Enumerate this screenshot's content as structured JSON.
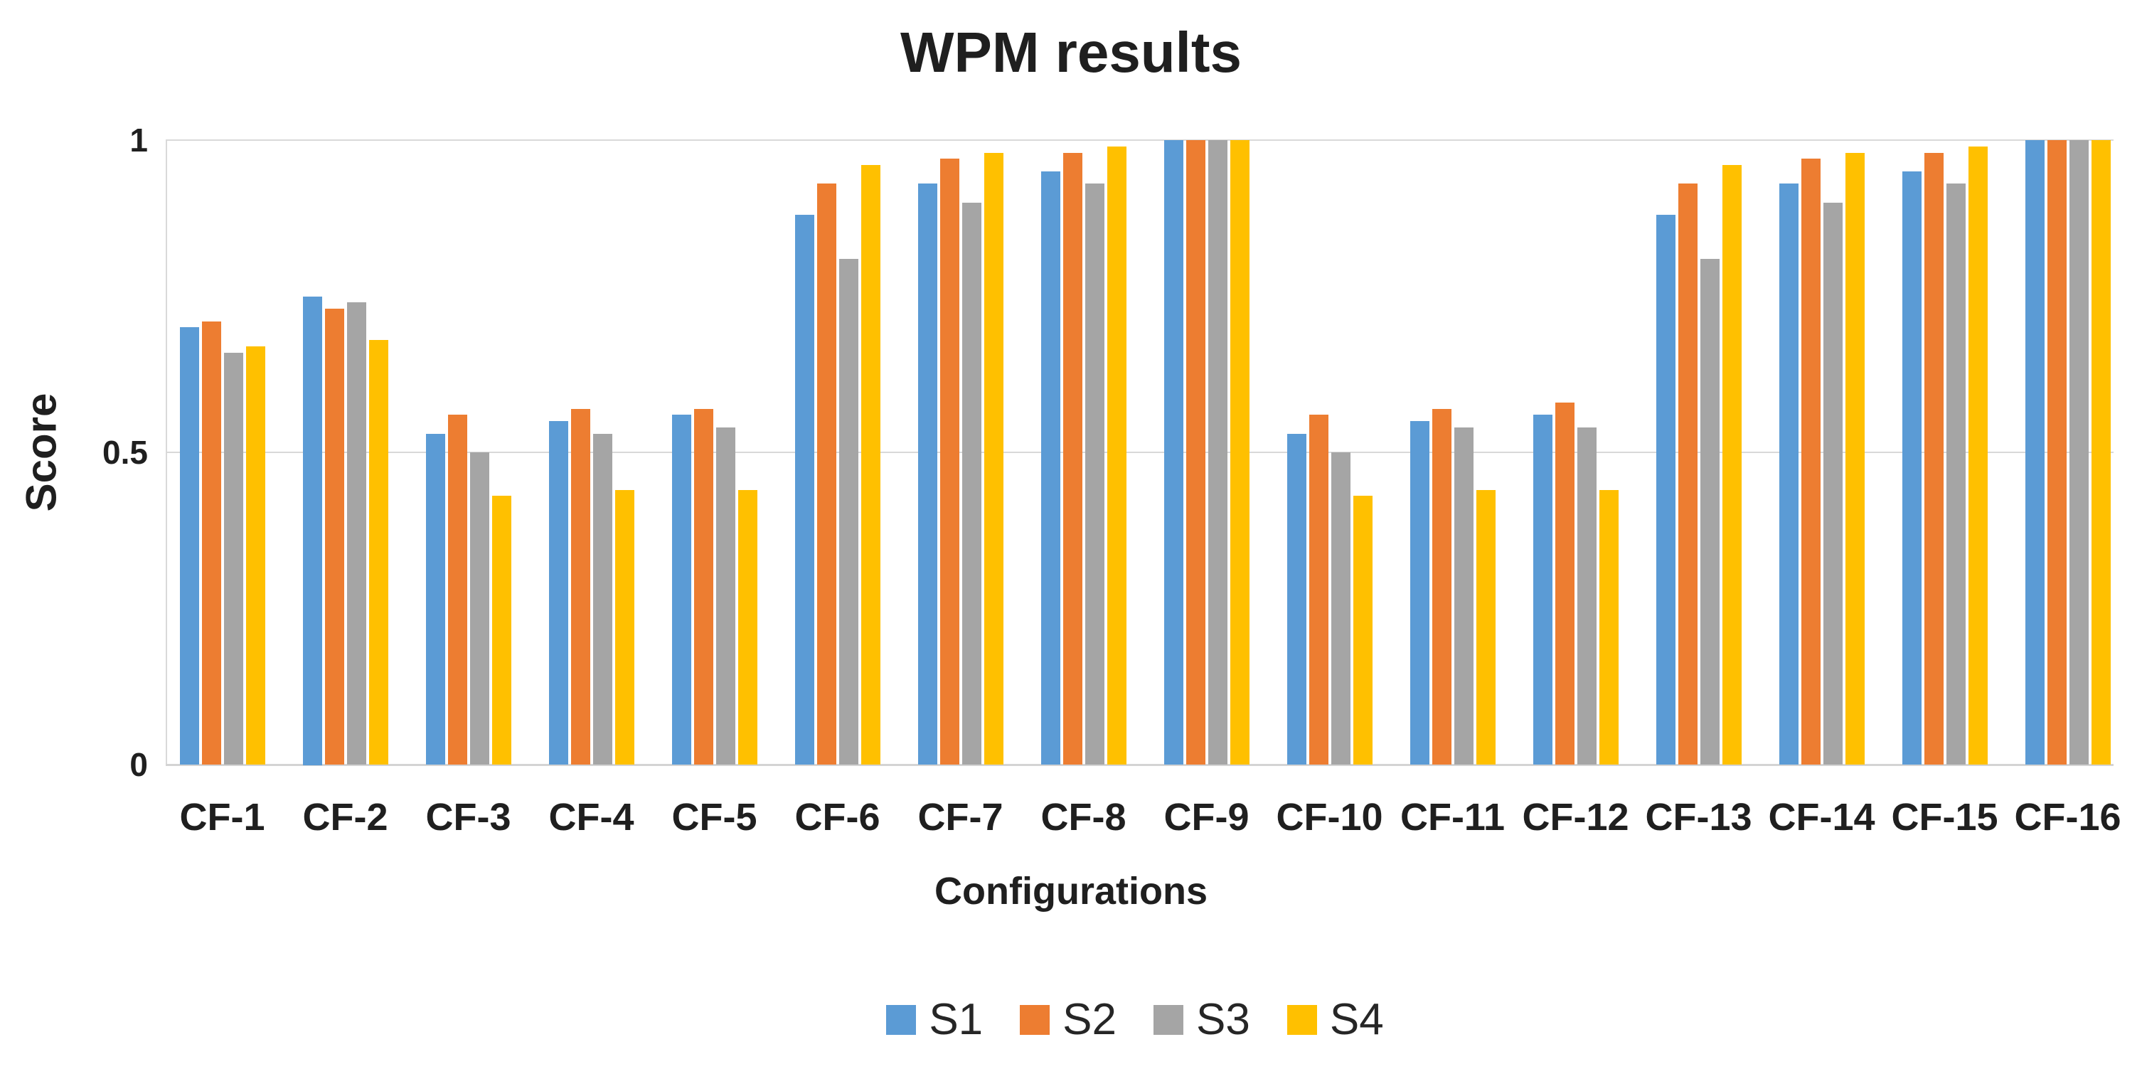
{
  "chart": {
    "title": "WPM results",
    "y_axis_title": "Score",
    "x_axis_title": "Configurations",
    "legend_items": [
      "S1",
      "S2",
      "S3",
      "S4"
    ]
  },
  "chart_data": {
    "type": "bar",
    "title": "WPM results",
    "xlabel": "Configurations",
    "ylabel": "Score",
    "ylim": [
      0,
      1
    ],
    "yticks": [
      {
        "value": 1,
        "label": "1"
      },
      {
        "value": 0.5,
        "label": "0.5"
      },
      {
        "value": 0,
        "label": "0"
      }
    ],
    "grid": "horizontal",
    "legend_position": "bottom-center",
    "background": "#ffffff",
    "gridline_color": "#d9d9d9",
    "categories": [
      "CF-1",
      "CF-2",
      "CF-3",
      "CF-4",
      "CF-5",
      "CF-6",
      "CF-7",
      "CF-8",
      "CF-9",
      "CF-10",
      "CF-11",
      "CF-12",
      "CF-13",
      "CF-14",
      "CF-15",
      "CF-16"
    ],
    "series": [
      {
        "name": "S1",
        "color": "#5B9BD5",
        "values": [
          0.7,
          0.75,
          0.53,
          0.55,
          0.56,
          0.88,
          0.93,
          0.95,
          1.0,
          0.53,
          0.55,
          0.56,
          0.88,
          0.93,
          0.95,
          1.0
        ]
      },
      {
        "name": "S2",
        "color": "#ED7D31",
        "values": [
          0.71,
          0.73,
          0.56,
          0.57,
          0.57,
          0.93,
          0.97,
          0.98,
          1.0,
          0.56,
          0.57,
          0.58,
          0.93,
          0.97,
          0.98,
          1.0
        ]
      },
      {
        "name": "S3",
        "color": "#A5A5A5",
        "values": [
          0.66,
          0.74,
          0.5,
          0.53,
          0.54,
          0.81,
          0.9,
          0.93,
          1.0,
          0.5,
          0.54,
          0.54,
          0.81,
          0.9,
          0.93,
          1.0
        ]
      },
      {
        "name": "S4",
        "color": "#FFC000",
        "values": [
          0.67,
          0.68,
          0.43,
          0.44,
          0.44,
          0.96,
          0.98,
          0.99,
          1.0,
          0.43,
          0.44,
          0.44,
          0.96,
          0.98,
          0.99,
          1.0
        ]
      }
    ]
  }
}
